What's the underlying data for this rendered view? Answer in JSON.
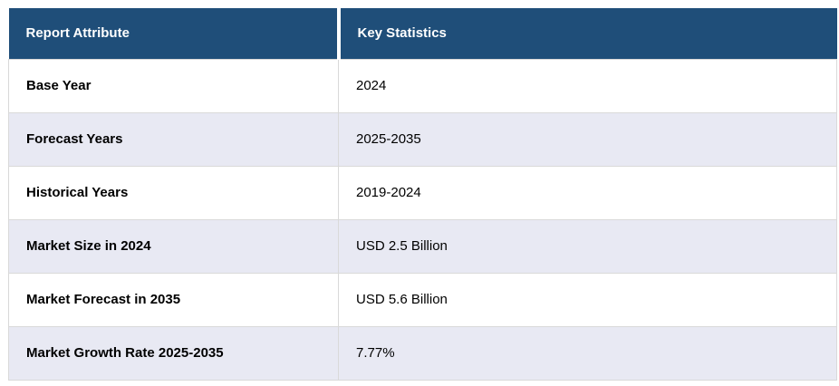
{
  "chart_data": {
    "type": "table",
    "title": "Report Attribute / Key Statistics summary table",
    "columns": [
      "Report Attribute",
      "Key Statistics"
    ],
    "rows": [
      [
        "Base Year",
        "2024"
      ],
      [
        "Forecast Years",
        "2025-2035"
      ],
      [
        "Historical Years",
        "2019-2024"
      ],
      [
        "Market Size in 2024",
        "USD 2.5 Billion"
      ],
      [
        "Market Forecast in 2035",
        "USD 5.6 Billion"
      ],
      [
        "Market Growth Rate 2025-2035",
        "7.77%"
      ]
    ],
    "layout": {
      "header_style": "dark-blue band, white bold text",
      "row_striping": "white / light lavender alternating",
      "grid": "thin light gray cell borders"
    }
  },
  "table": {
    "columns": [
      {
        "label": "Report Attribute"
      },
      {
        "label": "Key Statistics"
      }
    ],
    "rows": [
      {
        "attribute": "Base Year",
        "value": "2024"
      },
      {
        "attribute": "Forecast Years",
        "value": "2025-2035"
      },
      {
        "attribute": "Historical Years",
        "value": "2019-2024"
      },
      {
        "attribute": "Market Size in 2024",
        "value": "USD 2.5 Billion"
      },
      {
        "attribute": "Market Forecast in 2035",
        "value": "USD 5.6 Billion"
      },
      {
        "attribute": "Market Growth Rate 2025-2035",
        "value": "7.77%"
      }
    ],
    "colors": {
      "header_bg": "#1F4E79",
      "header_text": "#FFFFFF",
      "row_bg": "#FFFFFF",
      "row_alt_bg": "#E8E9F3",
      "border": "#D9D9D9",
      "text": "#000000"
    }
  }
}
